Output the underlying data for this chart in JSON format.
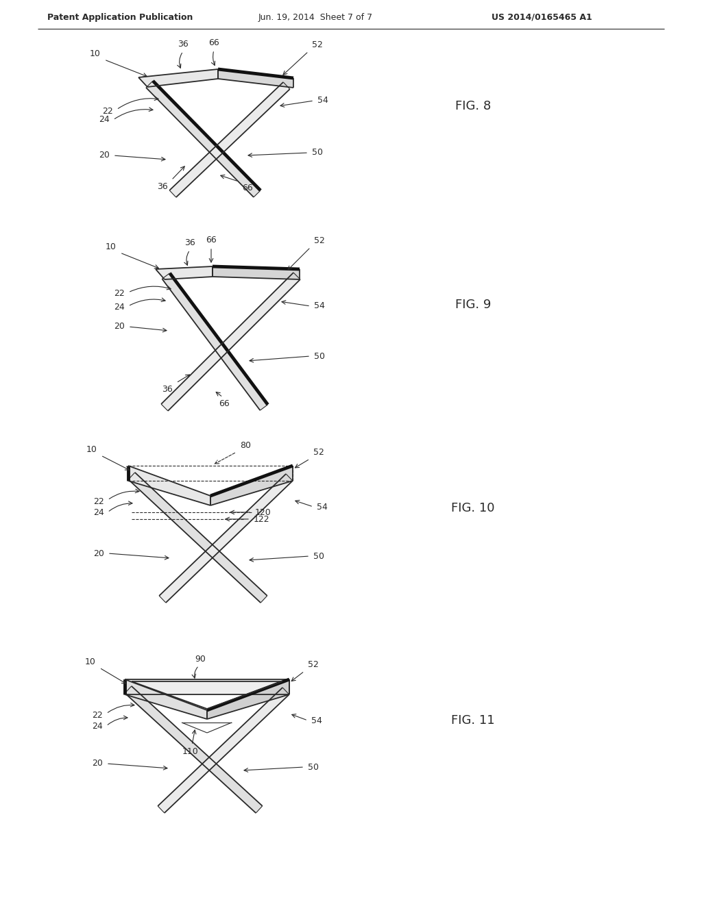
{
  "bg_color": "#ffffff",
  "line_color": "#2a2a2a",
  "header_left": "Patent Application Publication",
  "header_mid": "Jun. 19, 2014  Sheet 7 of 7",
  "header_right": "US 2014/0165465 A1",
  "fig8_label": "FIG. 8",
  "fig9_label": "FIG. 9",
  "fig10_label": "FIG. 10",
  "fig11_label": "FIG. 11",
  "font_size_header": 9,
  "font_size_fig": 13,
  "font_size_callout": 9
}
